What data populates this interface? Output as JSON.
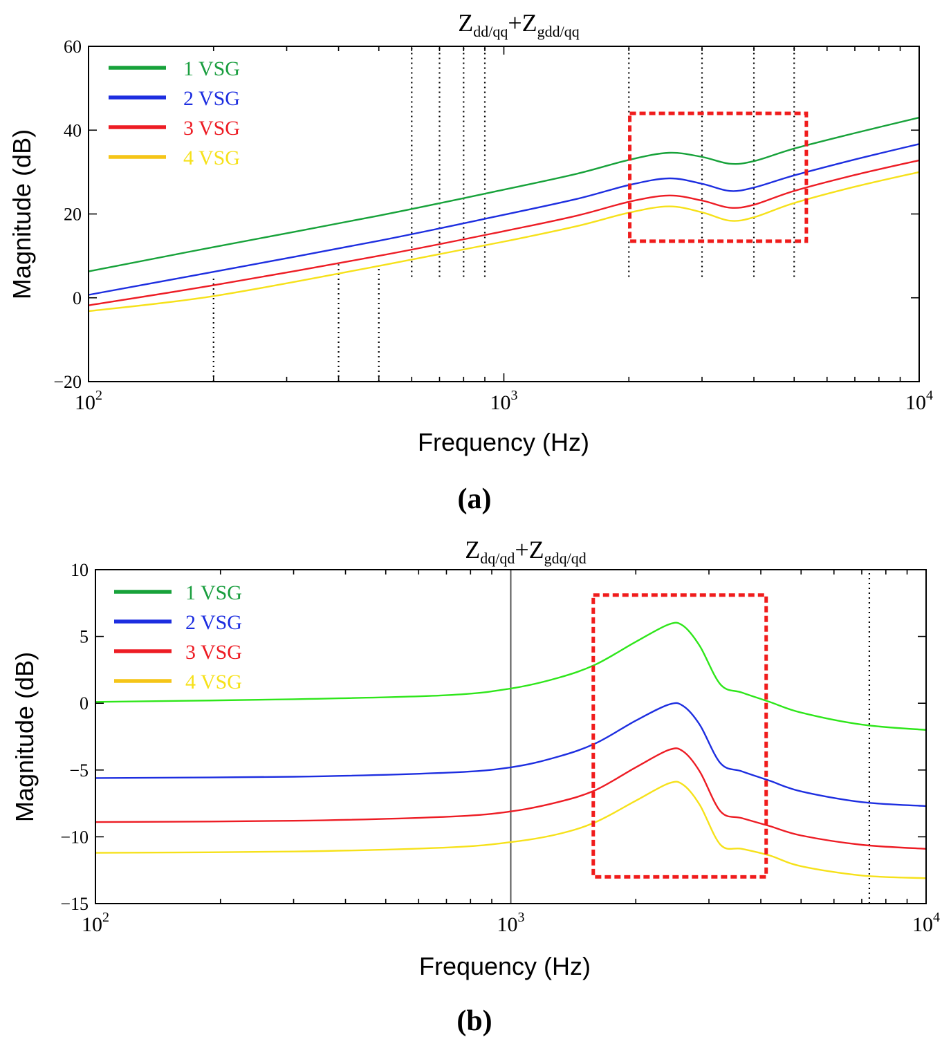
{
  "chart_data": [
    {
      "panel": "a",
      "type": "line",
      "caption": "(a)",
      "title": {
        "main": "Z",
        "sub1": "dd/qq",
        "plus": "+Z",
        "sub2": "gdd/qq"
      },
      "xlabel": "Frequency  (Hz)",
      "ylabel": "Magnitude (dB)",
      "xscale": "log",
      "xlim": [
        100,
        10000
      ],
      "ylim": [
        -20,
        60
      ],
      "yticks": [
        -20,
        0,
        20,
        40,
        60
      ],
      "ytick_labels": [
        "−20",
        "0",
        "20",
        "40",
        "60"
      ],
      "xtick_labels": [
        {
          "base": "10",
          "exp": "2"
        },
        {
          "base": "10",
          "exp": "3"
        },
        {
          "base": "10",
          "exp": "4"
        }
      ],
      "legend_position": "top-left",
      "series": [
        {
          "name": "1 VSG",
          "color": "#17a23a",
          "text_color": "#1a9e3f",
          "points": [
            [
              100,
              6.3
            ],
            [
              200,
              12.1
            ],
            [
              500,
              19.6
            ],
            [
              1000,
              25.8
            ],
            [
              1500,
              29.6
            ],
            [
              2000,
              32.9
            ],
            [
              2500,
              34.6
            ],
            [
              3000,
              33.6
            ],
            [
              3500,
              32.0
            ],
            [
              4000,
              32.6
            ],
            [
              5000,
              35.6
            ],
            [
              7000,
              39.3
            ],
            [
              10000,
              43.0
            ]
          ]
        },
        {
          "name": "2 VSG",
          "color": "#1d2ee0",
          "text_color": "#1d2ee0",
          "points": [
            [
              100,
              0.7
            ],
            [
              200,
              6.2
            ],
            [
              500,
              13.6
            ],
            [
              1000,
              19.8
            ],
            [
              1500,
              23.6
            ],
            [
              2000,
              26.9
            ],
            [
              2500,
              28.5
            ],
            [
              3000,
              27.2
            ],
            [
              3500,
              25.5
            ],
            [
              4000,
              26.3
            ],
            [
              5000,
              29.2
            ],
            [
              7000,
              33.0
            ],
            [
              10000,
              36.7
            ]
          ]
        },
        {
          "name": "3 VSG",
          "color": "#ed1c24",
          "text_color": "#ed1c24",
          "points": [
            [
              100,
              -1.8
            ],
            [
              200,
              3.0
            ],
            [
              500,
              10.0
            ],
            [
              1000,
              15.9
            ],
            [
              1500,
              19.6
            ],
            [
              2000,
              22.9
            ],
            [
              2500,
              24.4
            ],
            [
              3000,
              23.2
            ],
            [
              3500,
              21.5
            ],
            [
              4000,
              22.2
            ],
            [
              5000,
              25.5
            ],
            [
              7000,
              29.3
            ],
            [
              10000,
              32.8
            ]
          ]
        },
        {
          "name": "4 VSG",
          "color": "#f6e11a",
          "text_color": "#f6e11a",
          "legend_color": "#f5c518",
          "points": [
            [
              100,
              -3.2
            ],
            [
              200,
              0.4
            ],
            [
              500,
              7.6
            ],
            [
              1000,
              13.4
            ],
            [
              1500,
              17.1
            ],
            [
              2000,
              20.3
            ],
            [
              2500,
              21.8
            ],
            [
              3000,
              20.4
            ],
            [
              3500,
              18.4
            ],
            [
              4000,
              19.2
            ],
            [
              5000,
              22.6
            ],
            [
              7000,
              26.5
            ],
            [
              10000,
              30.0
            ]
          ]
        }
      ],
      "vlines": [
        {
          "x": 200,
          "y1": -20,
          "y2": 5
        },
        {
          "x": 400,
          "y1": -20,
          "y2": 8
        },
        {
          "x": 500,
          "y1": -20,
          "y2": 7
        },
        {
          "x": 600,
          "y1": 5,
          "y2": 60
        },
        {
          "x": 700,
          "y1": 5,
          "y2": 60
        },
        {
          "x": 800,
          "y1": 5,
          "y2": 60
        },
        {
          "x": 900,
          "y1": 5,
          "y2": 60
        },
        {
          "x": 2000,
          "y1": 5,
          "y2": 60
        },
        {
          "x": 3000,
          "y1": 5,
          "y2": 60
        },
        {
          "x": 4000,
          "y1": 5,
          "y2": 60
        },
        {
          "x": 5000,
          "y1": 5,
          "y2": 60
        }
      ],
      "highlight_box": {
        "x0": 2010,
        "x1": 5350,
        "y0": 13.5,
        "y1": 44
      }
    },
    {
      "panel": "b",
      "type": "line",
      "caption": "(b)",
      "title": {
        "main": "Z",
        "sub1": "dq/qd",
        "plus": "+Z",
        "sub2": "gdq/qd"
      },
      "xlabel": "Frequency  (Hz)",
      "ylabel": "Magnitude (dB)",
      "xscale": "log",
      "xlim": [
        100,
        10000
      ],
      "ylim": [
        -15,
        10
      ],
      "yticks": [
        -15,
        -10,
        -5,
        0,
        5,
        10
      ],
      "ytick_labels": [
        "−15",
        "−10",
        "−5",
        "0",
        "5",
        "10"
      ],
      "xtick_labels": [
        {
          "base": "10",
          "exp": "2"
        },
        {
          "base": "10",
          "exp": "3"
        },
        {
          "base": "10",
          "exp": "4"
        }
      ],
      "legend_position": "top-left",
      "series": [
        {
          "name": "1 VSG",
          "color": "#2ee61a",
          "text_color": "#1a9e3f",
          "legend_color": "#17a23a",
          "points": [
            [
              100,
              0.1
            ],
            [
              300,
              0.3
            ],
            [
              700,
              0.6
            ],
            [
              1000,
              1.1
            ],
            [
              1300,
              1.9
            ],
            [
              1600,
              2.9
            ],
            [
              2000,
              4.6
            ],
            [
              2400,
              5.9
            ],
            [
              2600,
              5.8
            ],
            [
              2850,
              4.3
            ],
            [
              3200,
              1.4
            ],
            [
              3600,
              0.8
            ],
            [
              4200,
              0.1
            ],
            [
              5000,
              -0.7
            ],
            [
              7000,
              -1.6
            ],
            [
              10000,
              -2.0
            ]
          ]
        },
        {
          "name": "2 VSG",
          "color": "#1d2ee0",
          "text_color": "#1d2ee0",
          "points": [
            [
              100,
              -5.6
            ],
            [
              300,
              -5.5
            ],
            [
              700,
              -5.2
            ],
            [
              1000,
              -4.8
            ],
            [
              1300,
              -4.0
            ],
            [
              1600,
              -3.0
            ],
            [
              2000,
              -1.3
            ],
            [
              2400,
              -0.1
            ],
            [
              2600,
              -0.2
            ],
            [
              2850,
              -1.6
            ],
            [
              3200,
              -4.5
            ],
            [
              3600,
              -5.1
            ],
            [
              4200,
              -5.8
            ],
            [
              5000,
              -6.6
            ],
            [
              7000,
              -7.4
            ],
            [
              10000,
              -7.7
            ]
          ]
        },
        {
          "name": "3 VSG",
          "color": "#ed1c24",
          "text_color": "#ed1c24",
          "points": [
            [
              100,
              -8.9
            ],
            [
              300,
              -8.8
            ],
            [
              700,
              -8.5
            ],
            [
              1000,
              -8.1
            ],
            [
              1300,
              -7.4
            ],
            [
              1600,
              -6.5
            ],
            [
              2000,
              -4.8
            ],
            [
              2400,
              -3.5
            ],
            [
              2600,
              -3.6
            ],
            [
              2850,
              -5.1
            ],
            [
              3200,
              -8.1
            ],
            [
              3600,
              -8.6
            ],
            [
              4200,
              -9.2
            ],
            [
              5000,
              -9.9
            ],
            [
              7000,
              -10.6
            ],
            [
              10000,
              -10.9
            ]
          ]
        },
        {
          "name": "4 VSG",
          "color": "#f6e11a",
          "text_color": "#f6e11a",
          "legend_color": "#f5c518",
          "points": [
            [
              100,
              -11.2
            ],
            [
              300,
              -11.1
            ],
            [
              700,
              -10.8
            ],
            [
              1000,
              -10.4
            ],
            [
              1300,
              -9.8
            ],
            [
              1600,
              -8.9
            ],
            [
              2000,
              -7.3
            ],
            [
              2400,
              -6.0
            ],
            [
              2600,
              -6.1
            ],
            [
              2850,
              -7.6
            ],
            [
              3200,
              -10.6
            ],
            [
              3600,
              -10.9
            ],
            [
              4200,
              -11.4
            ],
            [
              5000,
              -12.2
            ],
            [
              7000,
              -12.9
            ],
            [
              10000,
              -13.1
            ]
          ]
        }
      ],
      "vlines": [
        {
          "x": 1000,
          "y1": -15,
          "y2": 10,
          "solid": true
        },
        {
          "x": 7300,
          "y1": -15,
          "y2": 10
        }
      ],
      "highlight_box": {
        "x0": 1580,
        "x1": 4120,
        "y0": -13,
        "y1": 8.1
      }
    }
  ]
}
